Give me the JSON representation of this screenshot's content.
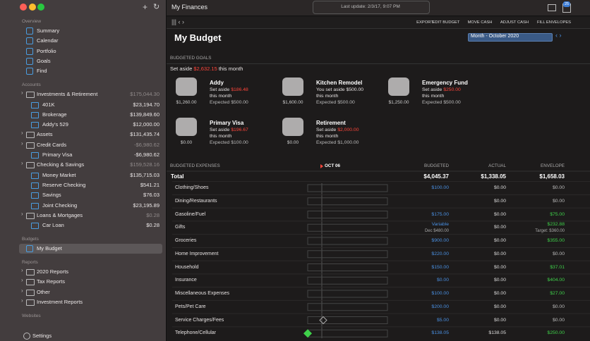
{
  "window": {
    "app_title": "My Finances",
    "last_update": "Last update: 2/3/17, 9:07 PM",
    "badge": "25"
  },
  "sidebar": {
    "sections": [
      {
        "label": "Overview",
        "items": [
          {
            "name": "Summary"
          },
          {
            "name": "Calendar"
          },
          {
            "name": "Portfolio"
          },
          {
            "name": "Goals"
          },
          {
            "name": "Find"
          }
        ]
      },
      {
        "label": "Accounts",
        "items": [
          {
            "name": "Investments & Retirement",
            "balance": "$175,044.30",
            "indent": 0,
            "color": "#8f8989"
          },
          {
            "name": "401K",
            "balance": "$23,194.70",
            "indent": 1
          },
          {
            "name": "Brokerage",
            "balance": "$139,849.60",
            "indent": 1
          },
          {
            "name": "Addy's 529",
            "balance": "$12,000.00",
            "indent": 1
          },
          {
            "name": "Assets",
            "balance": "$131,435.74",
            "indent": 0
          },
          {
            "name": "Credit Cards",
            "balance": "-$6,980.62",
            "indent": 0,
            "color": "#8f8989"
          },
          {
            "name": "Primary Visa",
            "balance": "-$6,980.62",
            "indent": 1
          },
          {
            "name": "Checking & Savings",
            "balance": "$159,528.16",
            "indent": 0,
            "color": "#8f8989"
          },
          {
            "name": "Money Market",
            "balance": "$135,715.03",
            "indent": 1
          },
          {
            "name": "Reserve Checking",
            "balance": "$541.21",
            "indent": 1
          },
          {
            "name": "Savings",
            "balance": "$76.03",
            "indent": 1
          },
          {
            "name": "Joint Checking",
            "balance": "$23,195.89",
            "indent": 1
          },
          {
            "name": "Loans & Mortgages",
            "balance": "$0.28",
            "indent": 0,
            "color": "#8f8989"
          },
          {
            "name": "Car Loan",
            "balance": "$0.28",
            "indent": 1
          }
        ]
      },
      {
        "label": "Budgets",
        "items": [
          {
            "name": "My Budget",
            "selected": true
          }
        ]
      },
      {
        "label": "Reports",
        "items": [
          {
            "name": "2020 Reports",
            "indent": 0
          },
          {
            "name": "Tax Reports",
            "indent": 0
          },
          {
            "name": "Other",
            "indent": 0
          },
          {
            "name": "Investment Reports",
            "indent": 0
          }
        ]
      },
      {
        "label": "Websites",
        "items": []
      }
    ],
    "settings": "Settings"
  },
  "toolbar": [
    "EXPORT",
    "EDIT BUDGET",
    "MOVE CASH",
    "ADJUST CASH",
    "FILL ENVELOPES"
  ],
  "budget": {
    "title": "My Budget",
    "period": "Month - October 2020",
    "goals_heading": "BUDGETED GOALS",
    "set_aside": {
      "prefix": "Set aside",
      "amount": "$2,632.15",
      "suffix": "this month"
    },
    "goals": [
      {
        "name": "Addy",
        "line1": "Set aside",
        "amount": "$186.48",
        "line2": "this month",
        "expected": "Expected $500.00",
        "saved": "$1,260.00"
      },
      {
        "name": "Kitchen Remodel",
        "line1": "You set aside $500.00",
        "line2": "this month",
        "expected": "Expected $500.00",
        "saved": "$1,600.00"
      },
      {
        "name": "Emergency Fund",
        "line1": "Set aside",
        "amount": "$250.00",
        "line2": "this month",
        "expected": "Expected $500.00",
        "saved": "$1,250.00"
      },
      {
        "name": "Primary Visa",
        "line1": "Set aside",
        "amount": "$196.67",
        "line2": "this month",
        "expected": "Expected $100.00",
        "saved": "$0.00"
      },
      {
        "name": "Retirement",
        "line1": "Set aside",
        "amount": "$2,000.00",
        "line2": "this month",
        "expected": "Expected $1,000.00",
        "saved": "$0.00"
      }
    ]
  },
  "expenses": {
    "heading": "BUDGETED EXPENSES",
    "date": "OCT 06",
    "columns": [
      "BUDGETED",
      "ACTUAL",
      "ENVELOPE"
    ],
    "total": {
      "name": "Total",
      "budgeted": "$4,045.37",
      "actual": "$1,338.05",
      "envelope": "$1,658.03"
    },
    "rows": [
      {
        "name": "Clothing/Shoes",
        "budgeted": "$100.00",
        "actual": "$0.00",
        "envelope": "$0.00"
      },
      {
        "name": "Dining/Restaurants",
        "actual": "$0.00",
        "envelope": "$0.00"
      },
      {
        "name": "Gasoline/Fuel",
        "budgeted": "$175.00",
        "actual": "$0.00",
        "envelope": "$75.00"
      },
      {
        "name": "Gifts",
        "budgeted": "Variable",
        "budgeted_note": "Dec $480.00",
        "actual": "$0.00",
        "envelope": "$232.88",
        "envelope_note": "Target: $360.00"
      },
      {
        "name": "Groceries",
        "budgeted": "$900.00",
        "actual": "$0.00",
        "envelope": "$355.00"
      },
      {
        "name": "Home Improvement",
        "budgeted": "$220.00",
        "actual": "$0.00",
        "envelope": "$0.00"
      },
      {
        "name": "Household",
        "budgeted": "$150.00",
        "actual": "$0.00",
        "envelope": "$37.01"
      },
      {
        "name": "Insurance",
        "budgeted": "$0.00",
        "actual": "$0.00",
        "envelope": "$404.00"
      },
      {
        "name": "Miscellaneous Expenses",
        "budgeted": "$100.00",
        "actual": "$0.00",
        "envelope": "$27.00"
      },
      {
        "name": "Pets/Pet Care",
        "budgeted": "$200.00",
        "actual": "$0.00",
        "envelope": "$0.00"
      },
      {
        "name": "Service Charges/Fees",
        "budgeted": "$5.00",
        "actual": "$0.00",
        "envelope": "$0.00"
      },
      {
        "name": "Telephone/Cellular",
        "budgeted": "$138.05",
        "actual": "$138.05",
        "envelope": "$250.00"
      }
    ]
  }
}
